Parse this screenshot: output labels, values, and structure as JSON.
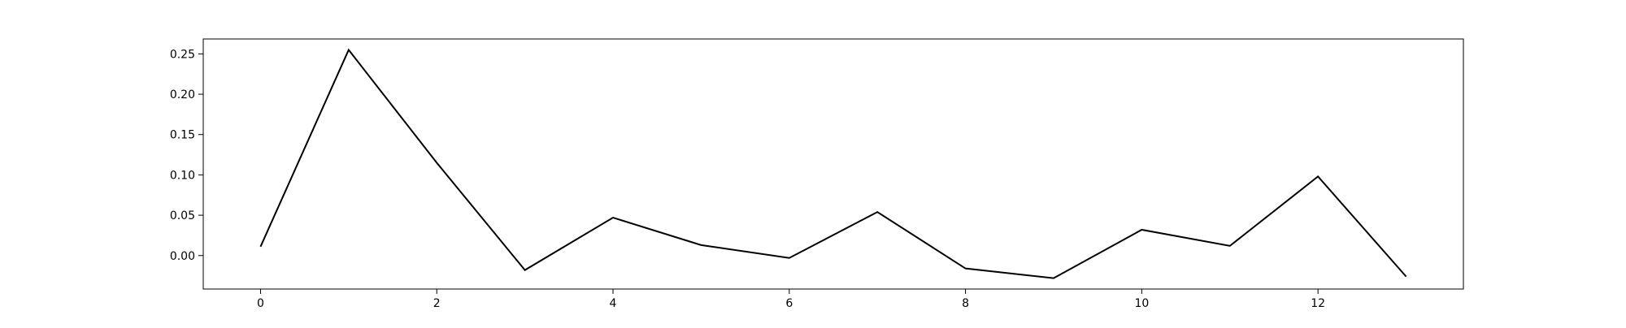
{
  "chart_data": {
    "type": "line",
    "title": "",
    "xlabel": "",
    "ylabel": "",
    "x": [
      0,
      1,
      2,
      3,
      4,
      5,
      6,
      7,
      8,
      9,
      10,
      11,
      12,
      13
    ],
    "series": [
      {
        "values": [
          0.011,
          0.255,
          0.115,
          -0.018,
          0.047,
          0.013,
          -0.003,
          0.054,
          -0.016,
          -0.028,
          0.032,
          0.012,
          0.098,
          -0.026
        ],
        "color": "#000000"
      }
    ],
    "xlim": [
      -0.65,
      13.65
    ],
    "ylim": [
      -0.0415,
      0.2685
    ],
    "xticks": [
      0,
      2,
      4,
      6,
      8,
      10,
      12
    ],
    "xtick_labels": [
      "0",
      "2",
      "4",
      "6",
      "8",
      "10",
      "12"
    ],
    "yticks": [
      0.0,
      0.05,
      0.1,
      0.15,
      0.2,
      0.25
    ],
    "ytick_labels": [
      "0.00",
      "0.05",
      "0.10",
      "0.15",
      "0.20",
      "0.25"
    ],
    "grid": false,
    "legend": "none"
  }
}
